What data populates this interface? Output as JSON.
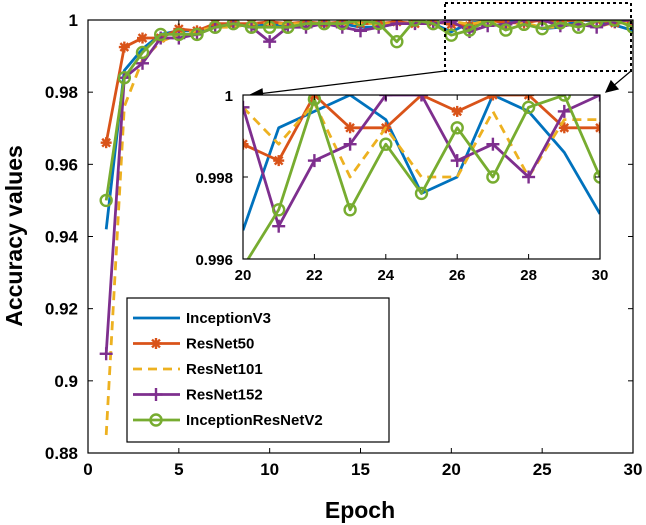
{
  "chart_data": {
    "type": "line",
    "xlabel": "Epoch",
    "ylabel": "Accuracy values",
    "xlim": [
      0,
      30
    ],
    "ylim": [
      0.88,
      1.0
    ],
    "xticks": [
      0,
      5,
      10,
      15,
      20,
      25,
      30
    ],
    "yticks": [
      0.88,
      0.9,
      0.92,
      0.94,
      0.96,
      0.98,
      1.0
    ],
    "ytick_labels": [
      "0.88",
      "0.9",
      "0.92",
      "0.94",
      "0.96",
      "0.98",
      "1"
    ],
    "legend_position": "bottom-left",
    "x": [
      1,
      2,
      3,
      4,
      5,
      6,
      7,
      8,
      9,
      10,
      11,
      12,
      13,
      14,
      15,
      16,
      17,
      18,
      19,
      20,
      21,
      22,
      23,
      24,
      25,
      26,
      27,
      28,
      29,
      30
    ],
    "series": [
      {
        "name": "InceptionV3",
        "color": "#0072BD",
        "style": "solid",
        "marker": "none",
        "values": [
          0.942,
          0.986,
          0.992,
          0.996,
          0.997,
          0.997,
          0.998,
          0.999,
          0.998,
          0.999,
          0.998,
          0.999,
          0.999,
          0.999,
          0.998,
          0.998,
          0.999,
          0.999,
          0.999,
          0.9967,
          0.9992,
          0.9996,
          1.0,
          0.9994,
          0.9976,
          0.998,
          1.0,
          0.9996,
          0.9986,
          0.9971
        ]
      },
      {
        "name": "ResNet50",
        "color": "#D95319",
        "style": "solid",
        "marker": "star",
        "values": [
          0.966,
          0.9925,
          0.995,
          0.995,
          0.9975,
          0.997,
          0.999,
          0.999,
          0.999,
          0.9995,
          0.999,
          0.9995,
          0.999,
          0.9995,
          0.999,
          0.999,
          0.9995,
          0.999,
          0.9995,
          0.9988,
          0.9984,
          1.0,
          0.9992,
          0.9992,
          1.0,
          0.9996,
          1.0,
          1.0,
          0.9992,
          0.9992
        ]
      },
      {
        "name": "ResNet101",
        "color": "#EDB120",
        "style": "dashed",
        "marker": "none",
        "values": [
          0.885,
          0.976,
          0.989,
          0.994,
          0.996,
          0.997,
          0.998,
          0.998,
          0.999,
          0.999,
          0.999,
          0.999,
          0.999,
          0.999,
          0.999,
          0.999,
          0.999,
          0.999,
          0.999,
          0.9997,
          0.9988,
          0.9998,
          0.998,
          0.9992,
          0.998,
          0.998,
          0.9996,
          0.998,
          0.9994,
          0.9994
        ]
      },
      {
        "name": "ResNet152",
        "color": "#7E2F8E",
        "style": "solid",
        "marker": "plus",
        "values": [
          0.9075,
          0.984,
          0.988,
          0.995,
          0.995,
          0.996,
          0.998,
          0.999,
          0.998,
          0.994,
          0.998,
          0.998,
          0.999,
          0.998,
          0.997,
          0.998,
          0.999,
          0.999,
          0.999,
          0.9997,
          0.9968,
          0.9984,
          0.9988,
          1.0,
          1.0,
          0.9984,
          0.9988,
          0.998,
          0.9996,
          1.0
        ]
      },
      {
        "name": "InceptionResNetV2",
        "color": "#77AC30",
        "style": "solid",
        "marker": "circle",
        "values": [
          0.95,
          0.984,
          0.991,
          0.996,
          0.996,
          0.996,
          0.998,
          0.999,
          0.998,
          0.998,
          0.998,
          0.999,
          0.999,
          0.999,
          1.0,
          0.999,
          0.994,
          1.0,
          0.999,
          0.9958,
          0.9972,
          0.9999,
          0.9972,
          0.9988,
          0.9976,
          0.9992,
          0.998,
          0.9997,
          1.0,
          0.998
        ]
      }
    ],
    "inset": {
      "xlim": [
        20,
        30
      ],
      "ylim": [
        0.996,
        1.0
      ],
      "xticks": [
        20,
        22,
        24,
        26,
        28,
        30
      ],
      "yticks": [
        0.996,
        0.998,
        1.0
      ],
      "ytick_labels": [
        "0.996",
        "0.998",
        "1"
      ]
    }
  }
}
